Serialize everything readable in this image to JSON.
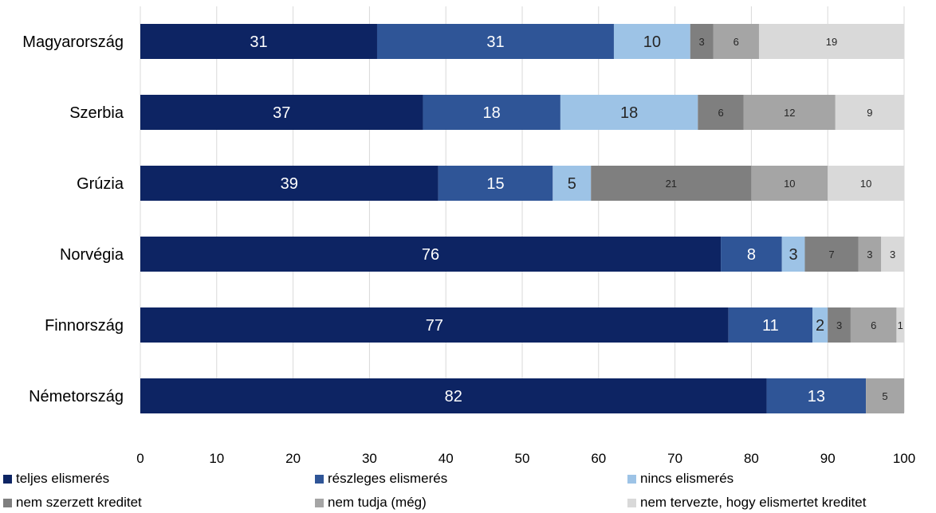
{
  "chart_data": {
    "type": "bar",
    "orientation": "horizontal",
    "stacked": true,
    "categories": [
      "Magyarország",
      "Szerbia",
      "Grúzia",
      "Norvégia",
      "Finnország",
      "Németország"
    ],
    "series": [
      {
        "name": "teljes elismerés",
        "color": "#0d2463",
        "values": [
          31,
          37,
          39,
          76,
          77,
          82
        ]
      },
      {
        "name": "részleges elismerés",
        "color": "#2f5597",
        "values": [
          31,
          18,
          15,
          8,
          11,
          13
        ]
      },
      {
        "name": "nincs elismerés",
        "color": "#9dc3e6",
        "values": [
          10,
          18,
          5,
          3,
          2,
          0
        ]
      },
      {
        "name": "nem szerzett kreditet",
        "color": "#7f7f7f",
        "values": [
          3,
          6,
          21,
          7,
          3,
          0
        ]
      },
      {
        "name": "nem tudja (még)",
        "color": "#a5a5a5",
        "values": [
          6,
          12,
          10,
          3,
          6,
          5
        ]
      },
      {
        "name": "nem tervezte, hogy elismertet kreditet",
        "color": "#d9d9d9",
        "values": [
          19,
          9,
          10,
          3,
          1,
          0
        ]
      }
    ],
    "xlim": [
      0,
      100
    ],
    "xticks": [
      0,
      10,
      20,
      30,
      40,
      50,
      60,
      70,
      80,
      90,
      100
    ],
    "grid": true,
    "legend_position": "bottom"
  }
}
